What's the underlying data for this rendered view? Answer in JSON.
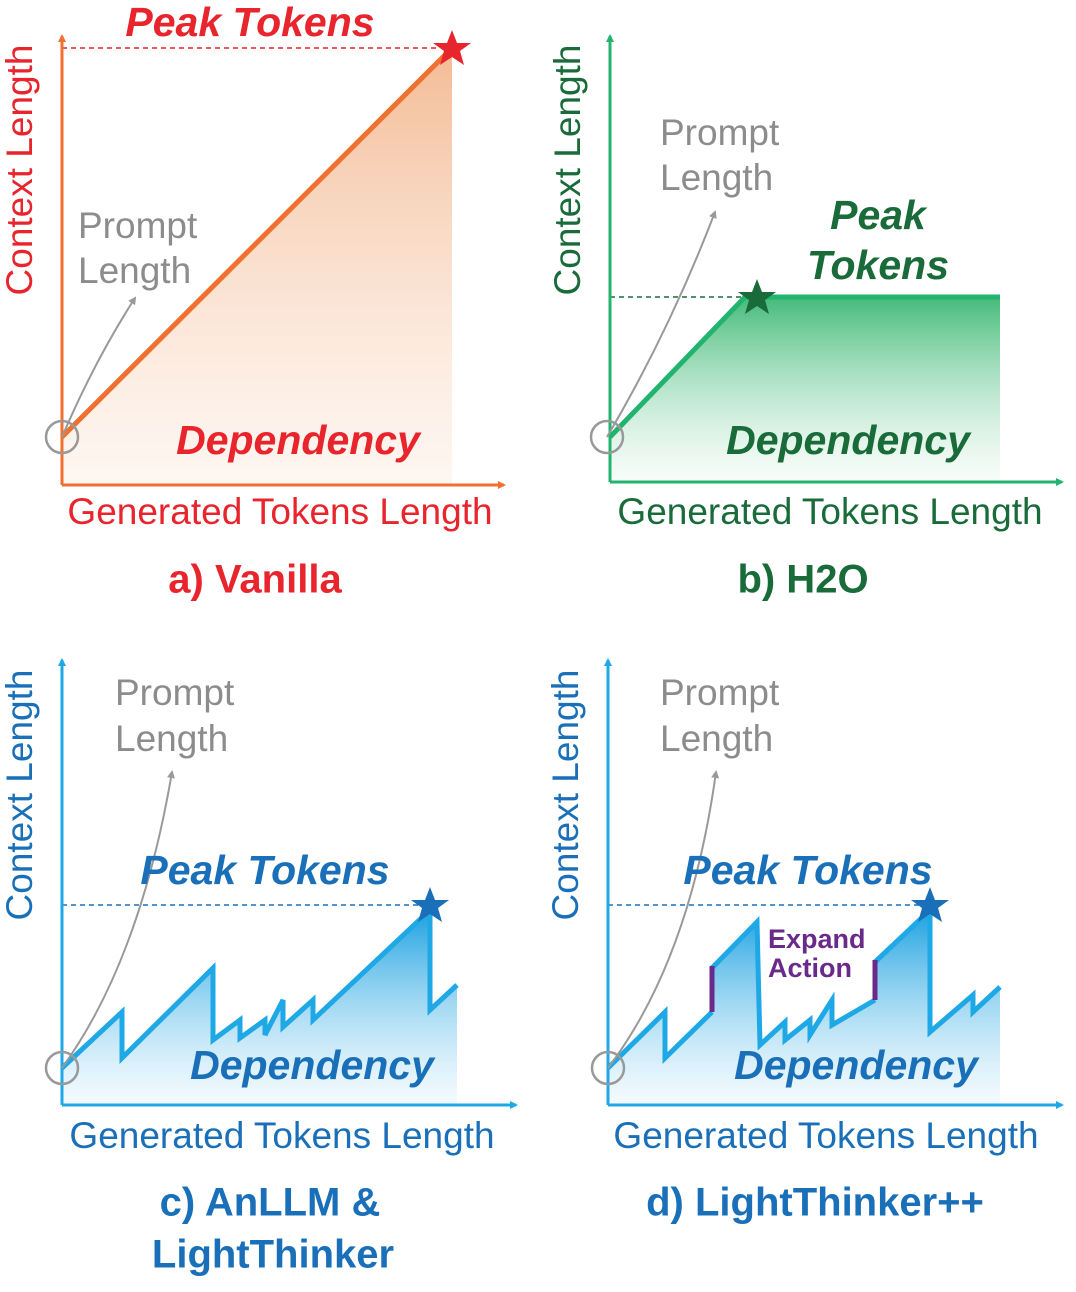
{
  "panels": [
    {
      "caption": [
        "a) Vanilla"
      ],
      "y_axis_label": "Context Length",
      "x_axis_label": "Generated Tokens Length",
      "prompt_label": [
        "Prompt",
        "Length"
      ],
      "peak_label": [
        "Peak Tokens"
      ],
      "dependency_label": "Dependency"
    },
    {
      "caption": [
        "b) H2O"
      ],
      "y_axis_label": "Context Length",
      "x_axis_label": "Generated Tokens Length",
      "prompt_label": [
        "Prompt",
        "Length"
      ],
      "peak_label": [
        "Peak",
        "Tokens"
      ],
      "dependency_label": "Dependency"
    },
    {
      "caption": [
        "c) AnLLM &",
        "LightThinker"
      ],
      "y_axis_label": "Context Length",
      "x_axis_label": "Generated Tokens Length",
      "prompt_label": [
        "Prompt",
        "Length"
      ],
      "peak_label": [
        "Peak Tokens"
      ],
      "dependency_label": "Dependency"
    },
    {
      "caption": [
        "d) LightThinker++"
      ],
      "y_axis_label": "Context Length",
      "x_axis_label": "Generated Tokens Length",
      "prompt_label": [
        "Prompt",
        "Length"
      ],
      "peak_label": [
        "Peak Tokens"
      ],
      "dependency_label": "Dependency",
      "action_label": [
        "Expand",
        "Action"
      ]
    }
  ]
}
